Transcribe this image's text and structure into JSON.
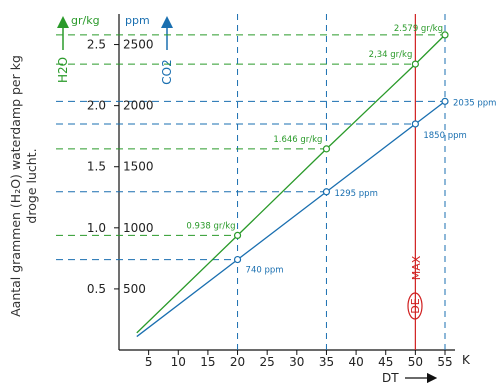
{
  "chart_data": {
    "type": "line",
    "xlabel": "DT",
    "x_unit": "K",
    "xlim": [
      0,
      55
    ],
    "x_ticks": [
      "5",
      "10",
      "15",
      "20",
      "25",
      "30",
      "35",
      "40",
      "45",
      "50",
      "55"
    ],
    "y_left": {
      "label": "H2O",
      "unit": "gr/kg",
      "range": [
        0,
        2.75
      ],
      "ticks": [
        "0.5",
        "1.0",
        "1.5",
        "2.0",
        "2.5"
      ]
    },
    "y_right": {
      "label": "CO2",
      "unit": "ppm",
      "range": [
        0,
        2750
      ],
      "ticks": [
        "500",
        "1000",
        "1500",
        "2000",
        "2500"
      ]
    },
    "side_label_line1": "Aantal grammen (H₂O) waterdamp per kg",
    "side_label_line2": "droge lucht.",
    "series": [
      {
        "name": "H2O",
        "color": "#2a9a2a",
        "x": [
          3,
          20,
          35,
          50,
          55
        ],
        "y": [
          0.14,
          0.938,
          1.646,
          2.34,
          2.579
        ],
        "labels": [
          "",
          "0.938 gr/kg",
          "1.646 gr/kg",
          "2,34 gr/kg",
          "2.579 gr/kg"
        ]
      },
      {
        "name": "CO2",
        "color": "#1a6fb0",
        "x": [
          3,
          20,
          35,
          50,
          55
        ],
        "y": [
          110,
          740,
          1295,
          1850,
          2035
        ],
        "labels": [
          "",
          "740 ppm",
          "1295 ppm",
          "1850 ppm",
          "2035 ppm"
        ]
      }
    ],
    "marker_line": {
      "x": 50,
      "label_top": "MAX",
      "label_bottom": "DE",
      "color": "#d02020"
    },
    "grid": "dashed reference lines at marked points"
  }
}
